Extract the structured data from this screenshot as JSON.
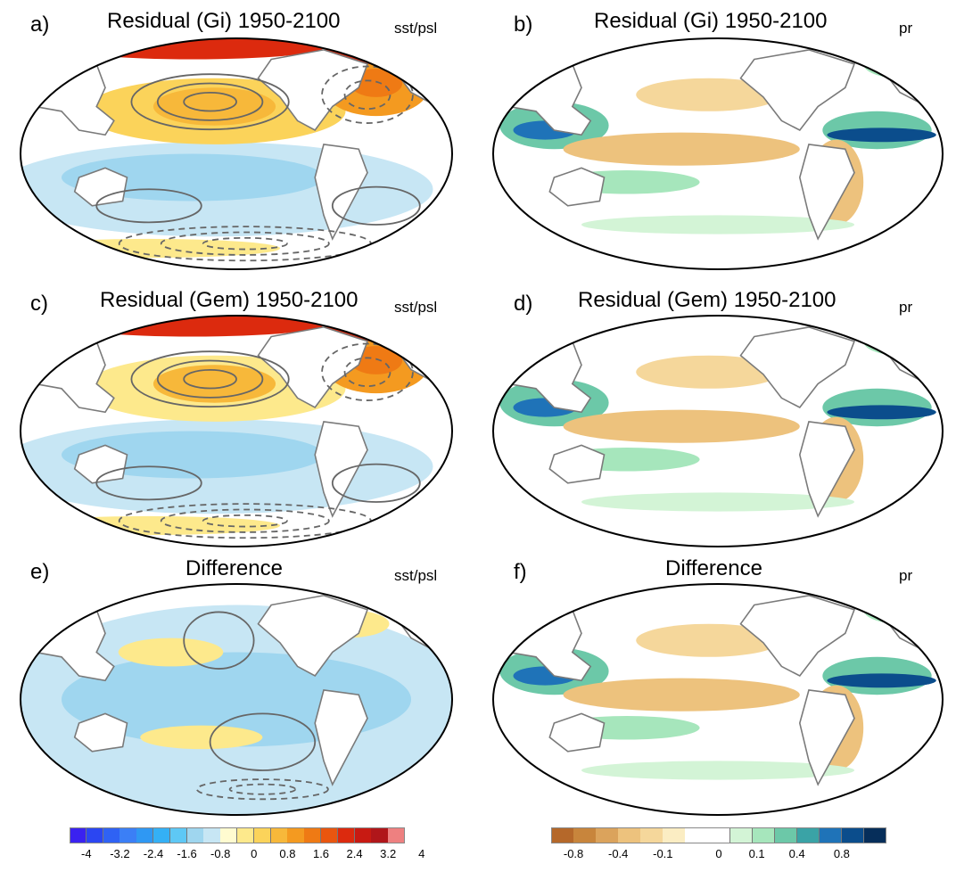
{
  "panels": [
    {
      "label": "a)",
      "title": "Residual (Gi) 1950-2100",
      "variable": "sst/psl",
      "kind": "sst"
    },
    {
      "label": "b)",
      "title": "Residual (Gi) 1950-2100",
      "variable": "pr",
      "kind": "pr"
    },
    {
      "label": "c)",
      "title": "Residual (Gem) 1950-2100",
      "variable": "sst/psl",
      "kind": "sst"
    },
    {
      "label": "d)",
      "title": "Residual (Gem) 1950-2100",
      "variable": "pr",
      "kind": "pr"
    },
    {
      "label": "e)",
      "title": "Difference",
      "variable": "sst/psl",
      "kind": "sst"
    },
    {
      "label": "f)",
      "title": "Difference",
      "variable": "pr",
      "kind": "pr"
    }
  ],
  "colorbars": {
    "sst": {
      "colors": [
        "#3a22f0",
        "#2b46f2",
        "#2f62f4",
        "#3b7ff6",
        "#2f98f3",
        "#34b0f5",
        "#5ec8f5",
        "#9fd6ef",
        "#c7e6f4",
        "#fffbd0",
        "#fde98c",
        "#fbd35a",
        "#f7b83a",
        "#f49a20",
        "#ef7a14",
        "#e9560f",
        "#dc2a0e",
        "#c81a12",
        "#b0161a",
        "#ee8080"
      ],
      "ticks": [
        "-4",
        "-3.2",
        "-2.4",
        "-1.6",
        "-0.8",
        "0",
        "0.8",
        "1.6",
        "2.4",
        "3.2",
        "4"
      ]
    },
    "pr": {
      "colors": [
        "#b5682a",
        "#c8853c",
        "#dba35c",
        "#edc27d",
        "#f5d79b",
        "#fbedc3",
        "#ffffff",
        "#ffffff",
        "#d3f4d6",
        "#a6e6bc",
        "#6cc8a8",
        "#3aa3a6",
        "#1f73b8",
        "#0b4d8c",
        "#062e5a"
      ],
      "ticks": [
        "-0.8",
        "-0.4",
        "-0.1",
        "0",
        "0.1",
        "0.4",
        "0.8"
      ]
    }
  }
}
